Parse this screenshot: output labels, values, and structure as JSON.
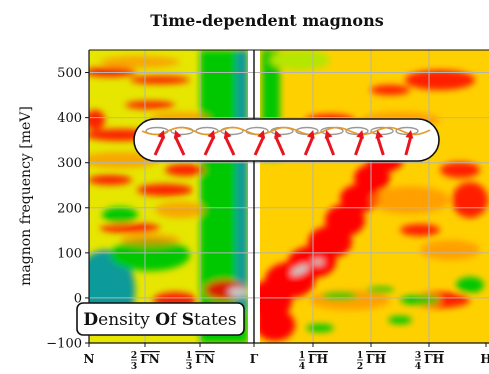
{
  "chart_data": {
    "type": "heatmap",
    "title": "Time-dependent magnons",
    "ylabel": "magnon frequency [meV]",
    "xlabel": "",
    "ylim": [
      -100,
      550
    ],
    "yticks": [
      -100,
      0,
      100,
      200,
      300,
      400,
      500
    ],
    "x_tick_labels": [
      {
        "main": "N",
        "frac": ""
      },
      {
        "main": "ΓN̅",
        "frac": "2/3"
      },
      {
        "main": "ΓN̅",
        "frac": "1/3"
      },
      {
        "main": "Γ",
        "frac": ""
      },
      {
        "main": "ΓH̅",
        "frac": "1/4"
      },
      {
        "main": "ΓH̅",
        "frac": "1/2"
      },
      {
        "main": "ΓH̅",
        "frac": "3/4"
      },
      {
        "main": "H",
        "frac": ""
      }
    ],
    "grid": true,
    "colormap": [
      "#0a9a9a",
      "#00c800",
      "#ffff00",
      "#ff0000",
      "#c8c8c8"
    ],
    "inset_label": "Density Of States",
    "inset_label_initials": [
      "D",
      "ensity ",
      "O",
      "f ",
      "S",
      "tates"
    ],
    "panels": [
      "Γ–N (left)",
      "Γ–H (right)"
    ]
  },
  "colors": {
    "axis": "#111111",
    "grid": "#b4b4b4",
    "spin_arrow": "#e8141e",
    "spin_wave": "#e69a28",
    "spin_ring": "#9a9a9a"
  }
}
